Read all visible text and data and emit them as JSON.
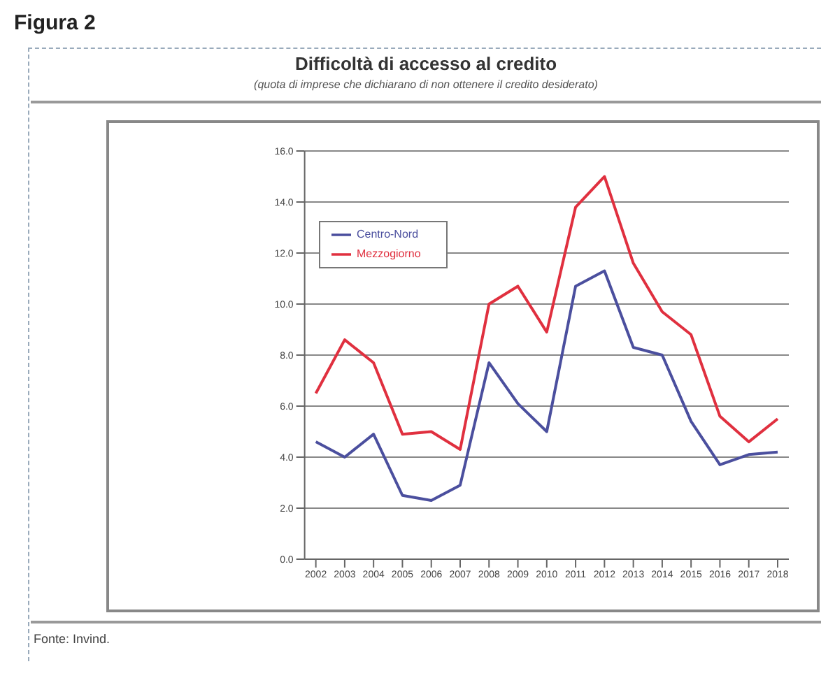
{
  "chart_data": {
    "type": "line",
    "title": "Difficoltà di accesso al credito",
    "subtitle": "(quota di imprese che dichiarano di non ottenere il credito desiderato)",
    "annotations": [
      "Figura 2",
      "Fonte: Invind."
    ],
    "categories": [
      "2002",
      "2003",
      "2004",
      "2005",
      "2006",
      "2007",
      "2008",
      "2009",
      "2010",
      "2011",
      "2012",
      "2013",
      "2014",
      "2015",
      "2016",
      "2017",
      "2018"
    ],
    "series": [
      {
        "name": "Centro-Nord",
        "color": "#4b4f9e",
        "values": [
          4.6,
          4.0,
          4.9,
          2.5,
          2.3,
          2.9,
          7.7,
          6.1,
          5.0,
          10.7,
          11.3,
          8.3,
          8.0,
          5.4,
          3.7,
          4.1,
          4.2
        ]
      },
      {
        "name": "Mezzogiorno",
        "color": "#e0303f",
        "values": [
          6.5,
          8.6,
          7.7,
          4.9,
          5.0,
          4.3,
          10.0,
          10.7,
          8.9,
          13.8,
          15.0,
          11.6,
          9.7,
          8.8,
          5.6,
          4.6,
          5.5
        ]
      }
    ],
    "ylim": [
      0,
      16
    ],
    "yticks": [
      {
        "value": 0,
        "label": "0.0"
      },
      {
        "value": 2,
        "label": "2.0"
      },
      {
        "value": 4,
        "label": "4.0"
      },
      {
        "value": 6,
        "label": "6.0"
      },
      {
        "value": 8,
        "label": "8.0"
      },
      {
        "value": 10,
        "label": "10.0"
      },
      {
        "value": 12,
        "label": "12.0"
      },
      {
        "value": 14,
        "label": "14.0"
      },
      {
        "value": 16,
        "label": "16.0"
      }
    ],
    "grid": "y",
    "legend": "top left",
    "marker": "none",
    "line_style": "solid"
  }
}
